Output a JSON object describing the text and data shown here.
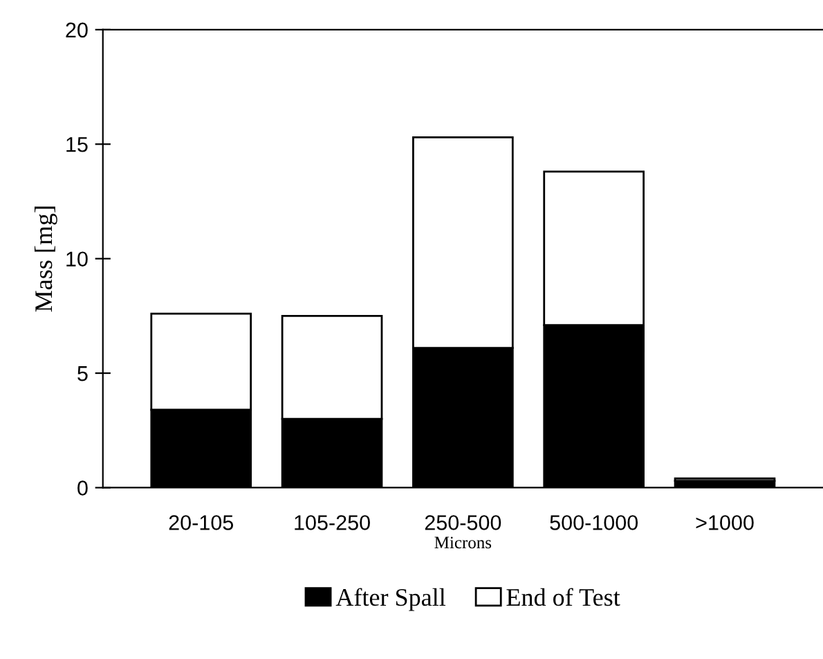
{
  "chart_data": {
    "type": "bar",
    "stacked": true,
    "xlabel": "Microns",
    "ylabel": "Mass [mg]",
    "categories": [
      "20-105",
      "105-250",
      "250-500",
      "500-1000",
      ">1000"
    ],
    "series": [
      {
        "name": "After Spall",
        "color": "#000000",
        "values": [
          3.4,
          3.0,
          6.1,
          7.1,
          0.3
        ]
      },
      {
        "name": "End of Test",
        "color": "#ffffff",
        "values": [
          4.2,
          4.5,
          9.2,
          6.7,
          0.1
        ]
      }
    ],
    "ylim": [
      0,
      20
    ],
    "yticks": [
      0,
      5,
      10,
      15,
      20
    ],
    "grid": false,
    "legend": "bottom"
  }
}
